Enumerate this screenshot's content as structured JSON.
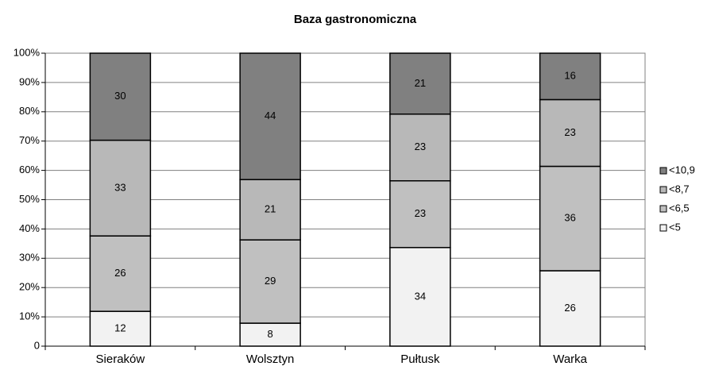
{
  "chart_data": {
    "type": "bar",
    "stacked": "percent",
    "title": "Baza gastronomiczna",
    "categories": [
      "Sieraków",
      "Wolsztyn",
      "Pułtusk",
      "Warka"
    ],
    "series": [
      {
        "name": "<5",
        "color": "#f2f2f2",
        "values": [
          12,
          8,
          34,
          26
        ]
      },
      {
        "name": "<6,5",
        "color": "#c0c0c0",
        "values": [
          26,
          29,
          23,
          36
        ]
      },
      {
        "name": "<8,7",
        "color": "#b8b8b8",
        "values": [
          33,
          21,
          23,
          23
        ]
      },
      {
        "name": "<10,9",
        "color": "#808080",
        "values": [
          30,
          44,
          21,
          16
        ]
      }
    ],
    "ylim": [
      0,
      100
    ],
    "yticks": [
      {
        "value": 0,
        "label": "0"
      },
      {
        "value": 10,
        "label": "10%"
      },
      {
        "value": 20,
        "label": "20%"
      },
      {
        "value": 30,
        "label": "30%"
      },
      {
        "value": 40,
        "label": "40%"
      },
      {
        "value": 50,
        "label": "50%"
      },
      {
        "value": 60,
        "label": "60%"
      },
      {
        "value": 70,
        "label": "70%"
      },
      {
        "value": 80,
        "label": "80%"
      },
      {
        "value": 90,
        "label": "90%"
      },
      {
        "value": 100,
        "label": "100%"
      }
    ],
    "grid": true,
    "legend": "right"
  }
}
